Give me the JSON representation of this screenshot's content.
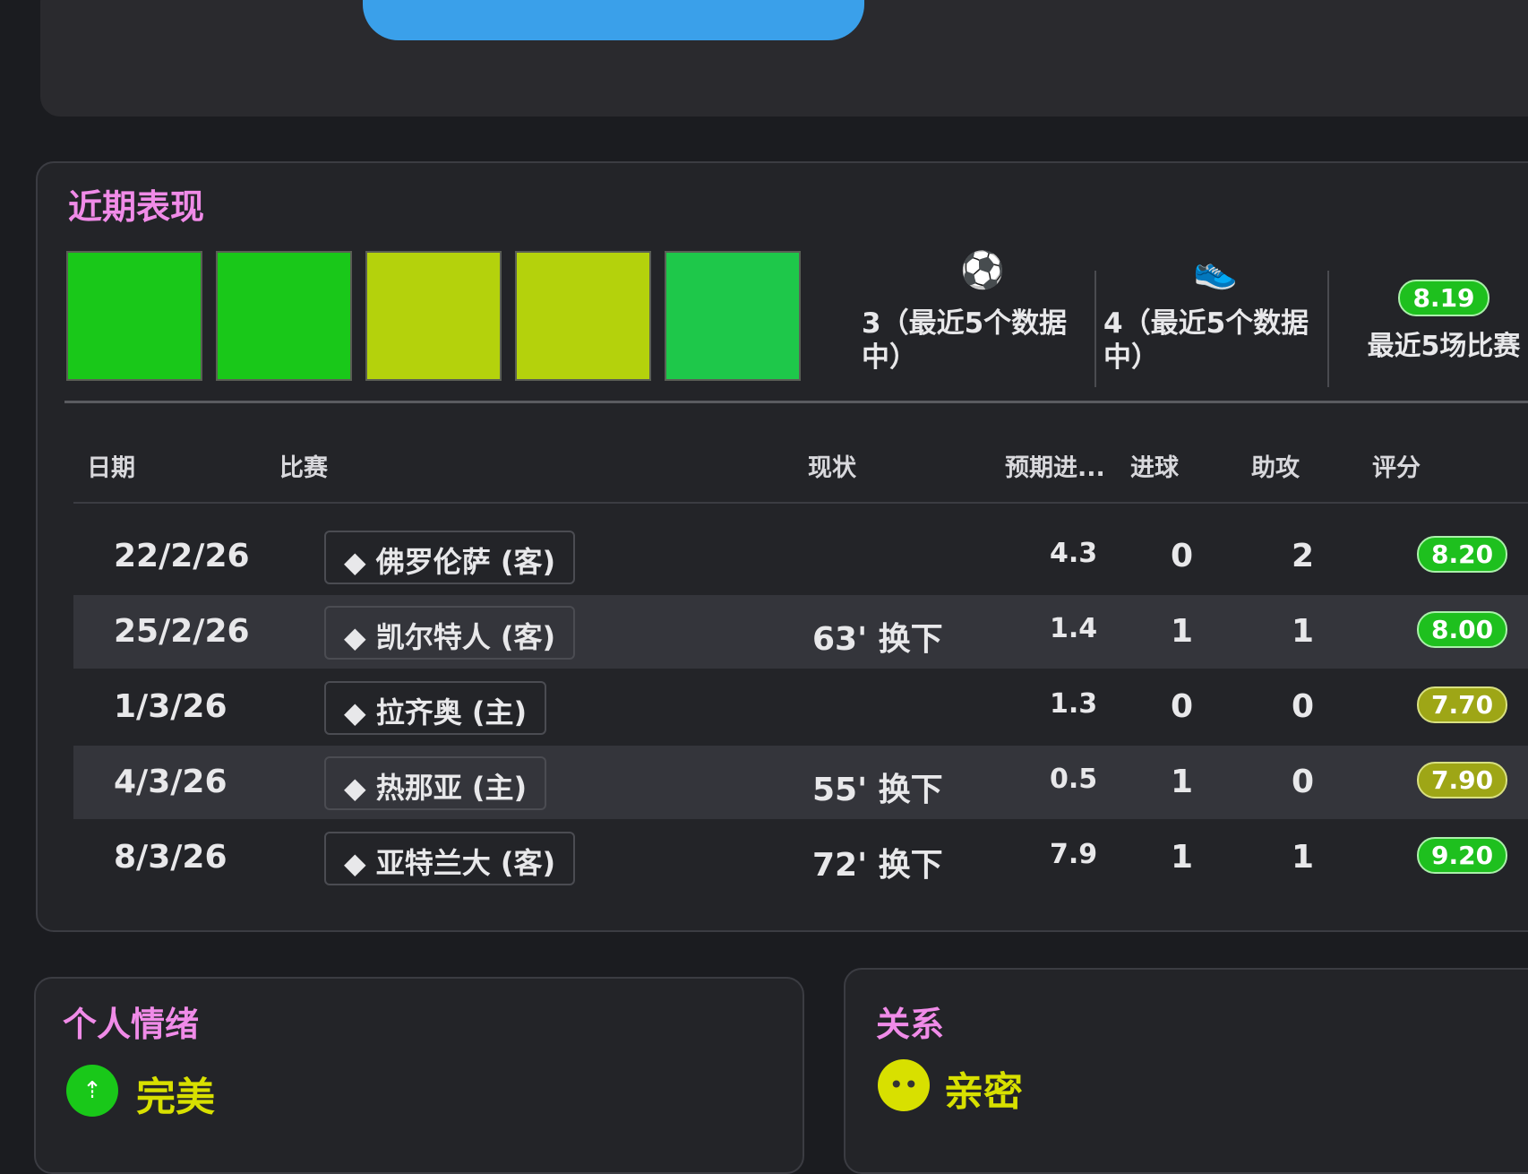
{
  "recent_form": {
    "title": "近期表现",
    "form_boxes": [
      {
        "color": "#19c819"
      },
      {
        "color": "#19c819"
      },
      {
        "color": "#b4d20c"
      },
      {
        "color": "#b4d20c"
      },
      {
        "color": "#1ec84a"
      }
    ],
    "goals_stat": {
      "icon": "football-icon",
      "text": "3（最近5个数据",
      "text2": "中）"
    },
    "assists_stat": {
      "icon": "boot-icon",
      "text": "4（最近5个数据",
      "text2": "中）"
    },
    "rating_stat": {
      "value": "8.19",
      "label": "最近5场比赛"
    },
    "columns": [
      "日期",
      "比赛",
      "现状",
      "预期进...",
      "进球",
      "助攻",
      "评分"
    ],
    "rows": [
      {
        "date": "22/2/26",
        "match": "佛罗伦萨 (客)",
        "status": "",
        "xg": "4.3",
        "goals": "0",
        "assists": "2",
        "rating": "8.20",
        "rating_class": "g"
      },
      {
        "date": "25/2/26",
        "match": "凯尔特人 (客)",
        "status": "63' 换下",
        "xg": "1.4",
        "goals": "1",
        "assists": "1",
        "rating": "8.00",
        "rating_class": "g"
      },
      {
        "date": "1/3/26",
        "match": "拉齐奥 (主)",
        "status": "",
        "xg": "1.3",
        "goals": "0",
        "assists": "0",
        "rating": "7.70",
        "rating_class": "y"
      },
      {
        "date": "4/3/26",
        "match": "热那亚 (主)",
        "status": "55' 换下",
        "xg": "0.5",
        "goals": "1",
        "assists": "0",
        "rating": "7.90",
        "rating_class": "y"
      },
      {
        "date": "8/3/26",
        "match": "亚特兰大 (客)",
        "status": "72' 换下",
        "xg": "7.9",
        "goals": "1",
        "assists": "1",
        "rating": "9.20",
        "rating_class": "g"
      }
    ]
  },
  "mood": {
    "title": "个人情绪",
    "value": "完美",
    "color": "#19c819"
  },
  "relationship": {
    "title": "关系",
    "value": "亲密",
    "color": "#d8e000"
  },
  "colors": {
    "accent_title": "#f08be8",
    "button": "#3aa0ea"
  }
}
